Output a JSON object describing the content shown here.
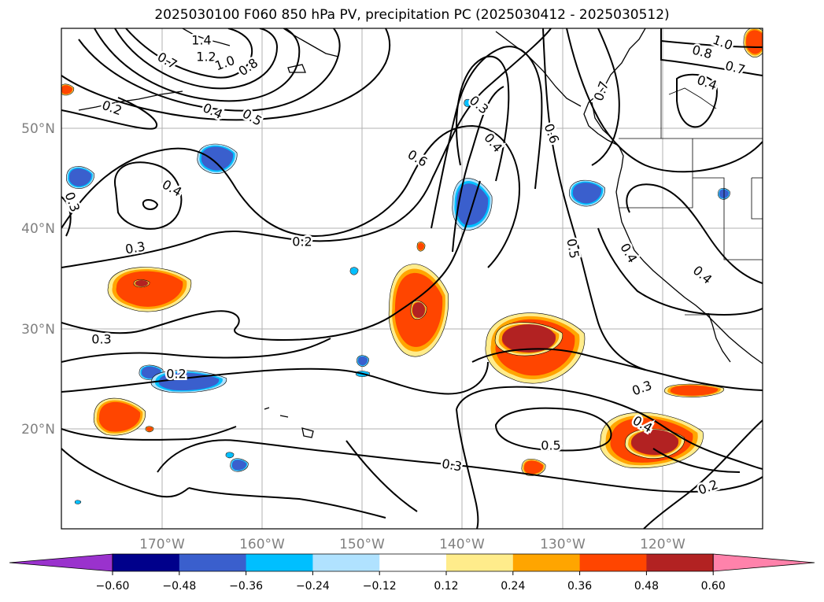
{
  "title": "2025030100 F060 850 hPa PV, precipitation PC (2025030412 - 2025030512)",
  "lat_labels": [
    "50°N",
    "40°N",
    "30°N",
    "20°N"
  ],
  "lon_labels": [
    "170°W",
    "160°W",
    "150°W",
    "140°W",
    "130°W",
    "120°W"
  ],
  "contour_labels": [
    "1.4",
    "1.2",
    "1.0",
    "0.8",
    "0.7",
    "0.2",
    "0.4",
    "0.5",
    "0.4",
    "0.3",
    "0.3",
    "0.2",
    "0.3",
    "0.2",
    "0.6",
    "0.3",
    "0.4",
    "0.6",
    "0.7",
    "0.5",
    "0.5",
    "0.4",
    "0.4",
    "0.3",
    "0.5",
    "0.4",
    "0.3",
    "0.2",
    "1.0",
    "0.8",
    "0.7",
    "0.4"
  ],
  "colorbar": {
    "ticks": [
      "−0.60",
      "−0.48",
      "−0.36",
      "−0.24",
      "−0.12",
      "0.12",
      "0.24",
      "0.36",
      "0.48",
      "0.60"
    ],
    "colors": [
      "#9a32cd",
      "#00008b",
      "#3a5fcd",
      "#00bfff",
      "#b0e2ff",
      "#ffffff",
      "#ffec8b",
      "#ffa500",
      "#ff4500",
      "#b22222",
      "#ff82ab"
    ]
  },
  "palette": {
    "neg_strong": "#3a5fcd",
    "neg_mid": "#00bfff",
    "neg_light": "#b0e2ff",
    "pos_light": "#ffec8b",
    "pos_mid": "#ffa500",
    "pos_strong": "#ff4500",
    "pos_max": "#b22222"
  }
}
